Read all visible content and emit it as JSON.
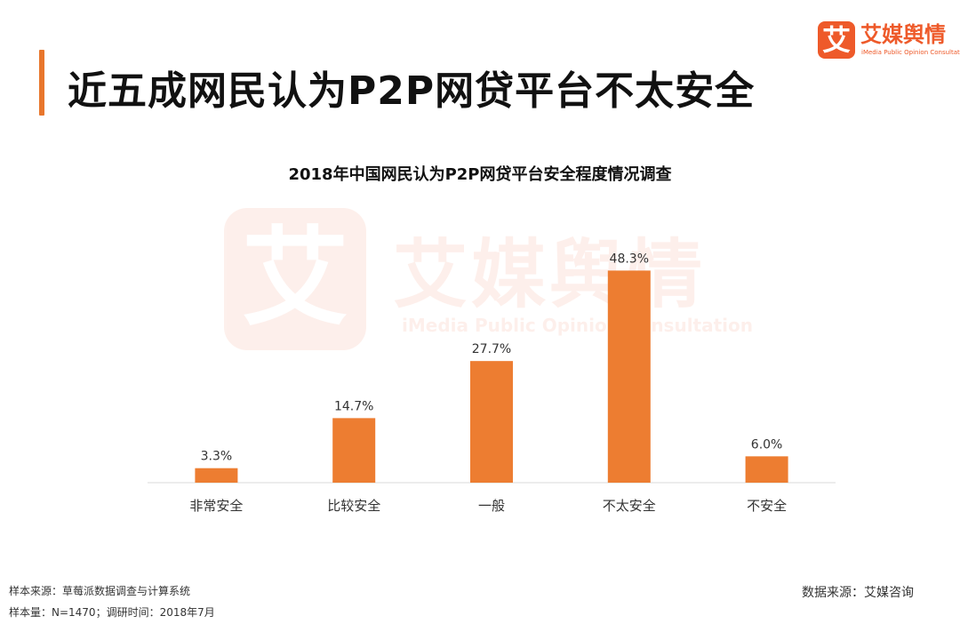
{
  "page": {
    "title": "近五成网民认为P2P网贷平台不太安全"
  },
  "logo": {
    "mark": "艾",
    "name": "艾媒舆情",
    "subtitle": "iMedia Public Opinion Consultation"
  },
  "watermark": {
    "mark": "艾",
    "name": "艾媒舆情",
    "subtitle": "iMedia Public Opinion Consultation"
  },
  "footer": {
    "sample_source": "样本来源：草莓派数据调查与计算系统",
    "sample_size": "样本量：N=1470；调研时间：2018年7月",
    "data_source": "数据来源：艾媒咨询"
  },
  "colors": {
    "accent": "#E8762C",
    "bar": "#ED7D31",
    "brand": "#EE5A2A"
  },
  "chart_data": {
    "type": "bar",
    "title": "2018年中国网民认为P2P网贷平台安全程度情况调查",
    "categories": [
      "非常安全",
      "比较安全",
      "一般",
      "不太安全",
      "不安全"
    ],
    "values": [
      3.3,
      14.7,
      27.7,
      48.3,
      6.0
    ],
    "value_labels": [
      "3.3%",
      "14.7%",
      "27.7%",
      "48.3%",
      "6.0%"
    ],
    "unit": "%",
    "ylim": [
      0,
      50
    ],
    "grid": false,
    "legend": "none",
    "xlabel": "",
    "ylabel": ""
  }
}
